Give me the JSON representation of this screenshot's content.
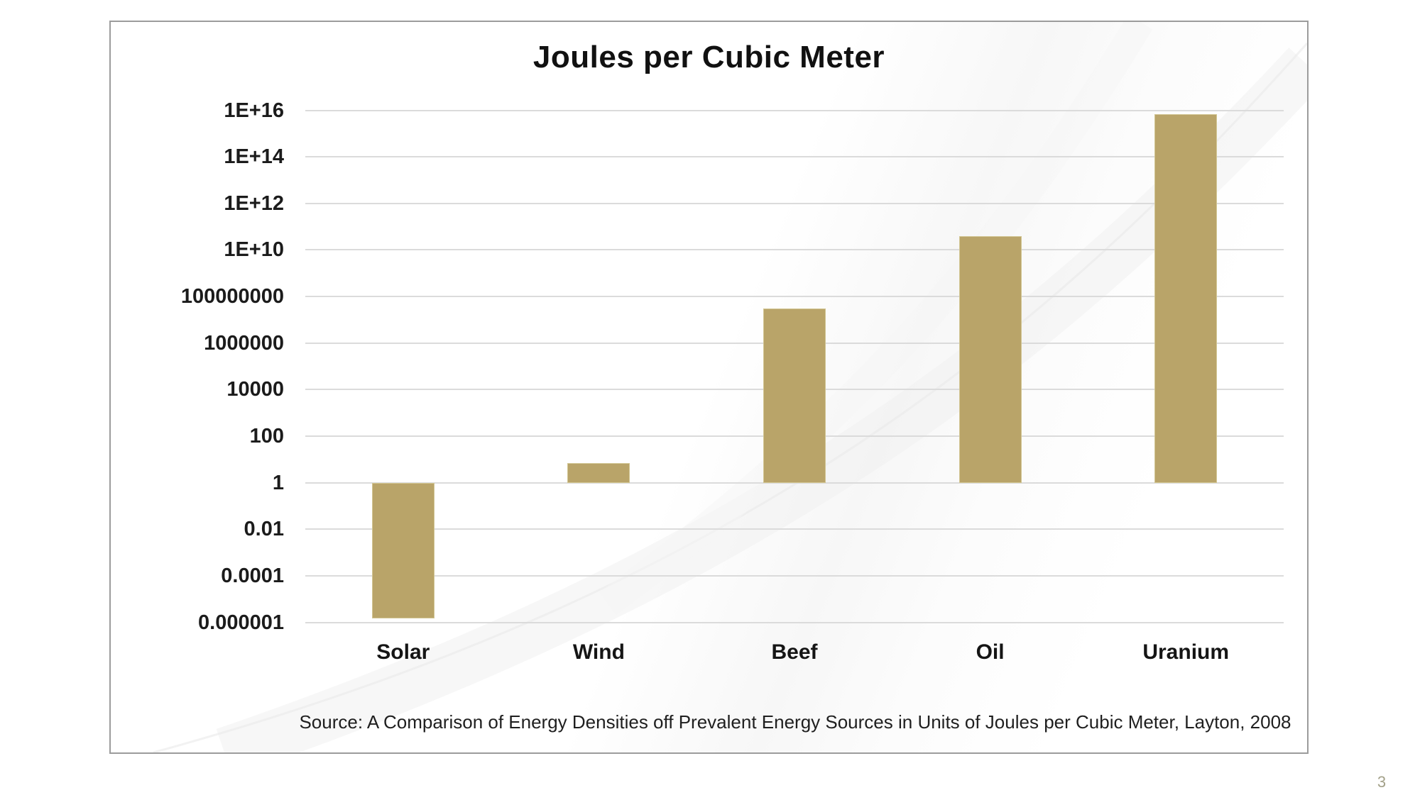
{
  "page": {
    "number": "3"
  },
  "slide": {
    "title": "Joules per Cubic Meter",
    "source": "Source: A Comparison of Energy Densities off Prevalent Energy Sources in Units of Joules per Cubic Meter, Layton, 2008"
  },
  "chart_data": {
    "type": "bar",
    "title": "Joules per Cubic Meter",
    "categories": [
      "Solar",
      "Wind",
      "Beef",
      "Oil",
      "Uranium"
    ],
    "values": [
      1.5e-06,
      7,
      30000000.0,
      40000000000.0,
      7000000000000000.0
    ],
    "baseline": 1,
    "ylim": [
      1e-06,
      1e+16
    ],
    "y_axis": {
      "scale": "log",
      "ticks": [
        {
          "label": "1E+16",
          "value": 1e+16
        },
        {
          "label": "1E+14",
          "value": 100000000000000.0
        },
        {
          "label": "1E+12",
          "value": 1000000000000.0
        },
        {
          "label": "1E+10",
          "value": 10000000000.0
        },
        {
          "label": "100000000",
          "value": 100000000.0
        },
        {
          "label": "1000000",
          "value": 1000000.0
        },
        {
          "label": "10000",
          "value": 10000.0
        },
        {
          "label": "100",
          "value": 100
        },
        {
          "label": "1",
          "value": 1
        },
        {
          "label": "0.01",
          "value": 0.01
        },
        {
          "label": "0.0001",
          "value": 0.0001
        },
        {
          "label": "0.000001",
          "value": 1e-06
        }
      ]
    },
    "xlabel": "",
    "ylabel": "",
    "grid": true,
    "legend": false,
    "bar_color": "#b9a469",
    "gridline_color": "#dbdbdb",
    "notes": "bars rise (or fall) from baseline value 1 on a log scale"
  }
}
